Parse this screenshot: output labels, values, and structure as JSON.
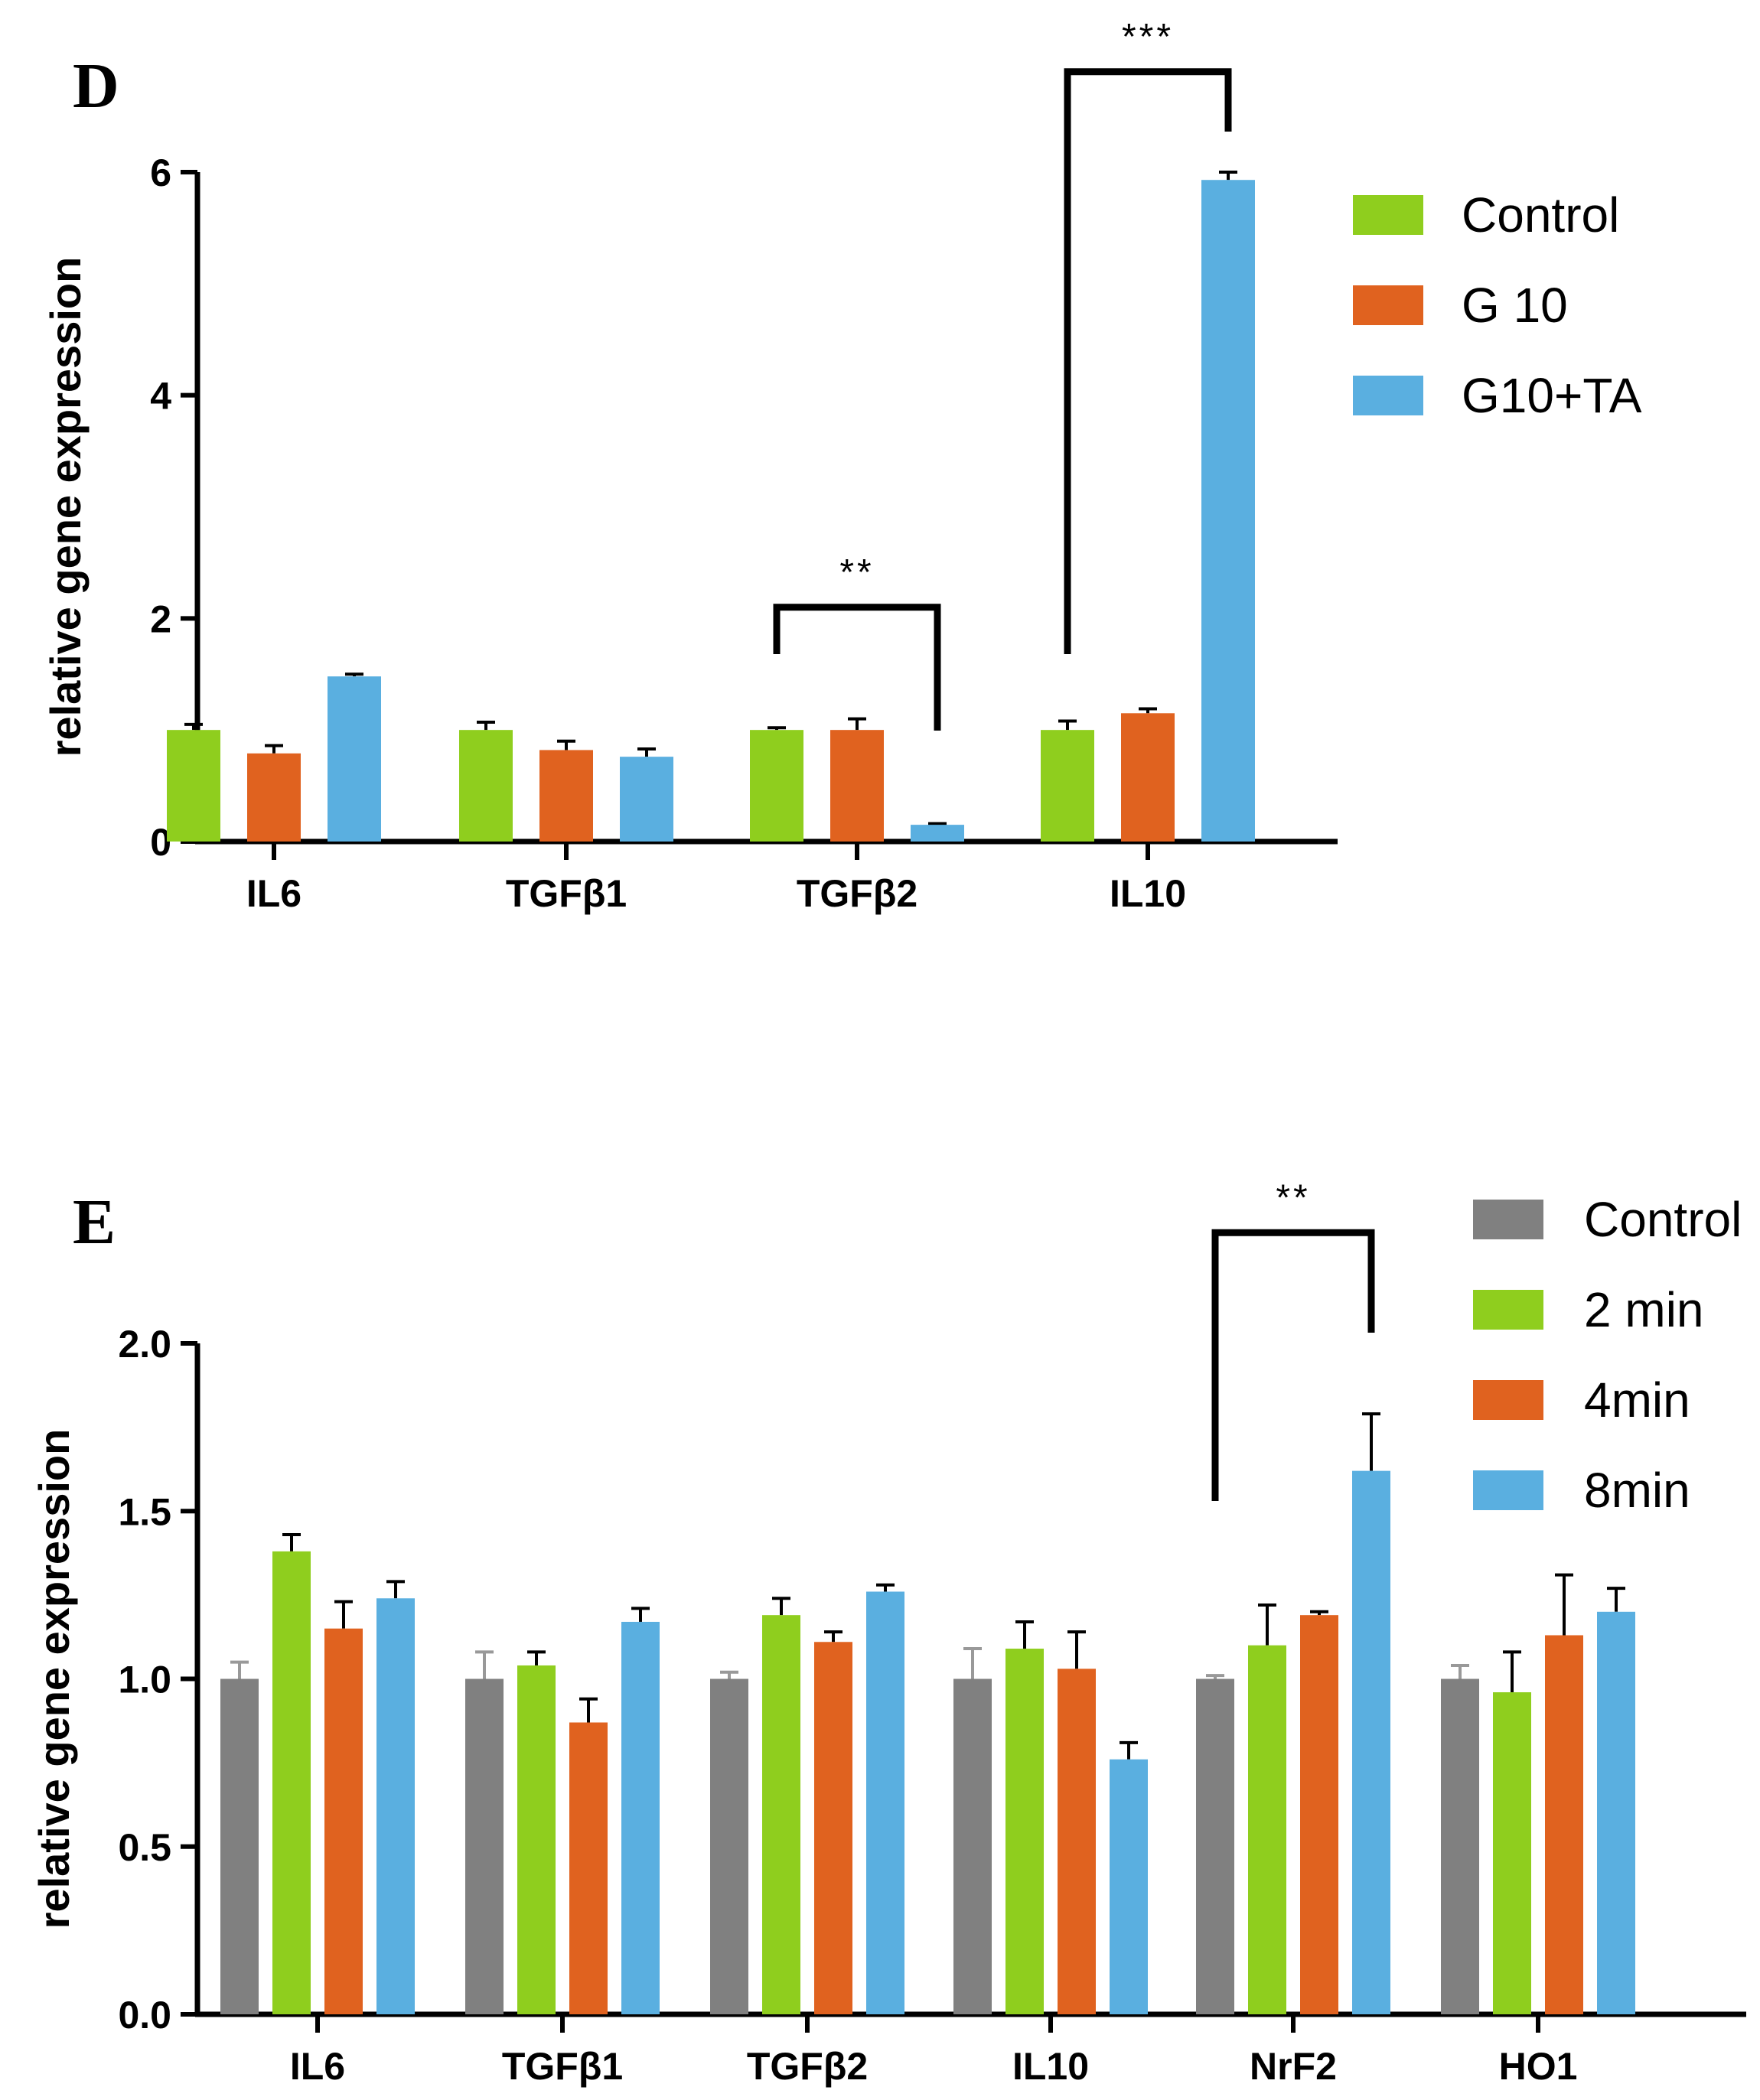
{
  "colors": {
    "gray": "#808080",
    "green": "#8fce1e",
    "orange": "#e0621f",
    "blue": "#5aafe0",
    "errbar": "#000000",
    "errbar_gray": "#999999"
  },
  "chart_data": [
    {
      "panel": "D",
      "type": "bar",
      "title": "",
      "xlabel": "",
      "ylabel": "relative  gene expression",
      "ylim": [
        0,
        6
      ],
      "yticks": [
        "0",
        "2",
        "4",
        "6"
      ],
      "legend_position": "top-right",
      "categories": [
        "IL6",
        "TGFβ1",
        "TGFβ2",
        "IL10"
      ],
      "series": [
        {
          "name": "Control",
          "color_key": "green",
          "values": [
            1.0,
            1.0,
            1.0,
            1.0
          ],
          "errors": [
            0.05,
            0.07,
            0.02,
            0.08
          ]
        },
        {
          "name": "G 10",
          "color_key": "orange",
          "values": [
            0.79,
            0.82,
            1.0,
            1.15
          ],
          "errors": [
            0.07,
            0.08,
            0.1,
            0.04
          ]
        },
        {
          "name": "G10+TA",
          "color_key": "blue",
          "values": [
            1.48,
            0.76,
            0.15,
            5.93
          ],
          "errors": [
            0.02,
            0.07,
            0.01,
            0.07
          ]
        }
      ],
      "annotations": [
        {
          "label": "**",
          "category": "TGFβ2",
          "from_series": 0,
          "to_series": 2,
          "level": 2.1
        },
        {
          "label": "***",
          "category": "IL10",
          "from_series": 0,
          "to_series": 2,
          "level": 6.9
        }
      ]
    },
    {
      "panel": "E",
      "type": "bar",
      "title": "",
      "xlabel": "",
      "ylabel": "relative  gene expression",
      "ylim": [
        0,
        2.0
      ],
      "yticks": [
        "0.0",
        "0.5",
        "1.0",
        "1.5",
        "2.0"
      ],
      "legend_position": "top-right",
      "categories": [
        "IL6",
        "TGFβ1",
        "TGFβ2",
        "IL10",
        "NrF2",
        "HO1"
      ],
      "series": [
        {
          "name": "Control",
          "color_key": "gray",
          "values": [
            1.0,
            1.0,
            1.0,
            1.0,
            1.0,
            1.0
          ],
          "errors": [
            0.05,
            0.08,
            0.02,
            0.09,
            0.01,
            0.04
          ]
        },
        {
          "name": "2 min",
          "color_key": "green",
          "values": [
            1.38,
            1.04,
            1.19,
            1.09,
            1.1,
            0.96
          ],
          "errors": [
            0.05,
            0.04,
            0.05,
            0.08,
            0.12,
            0.12
          ]
        },
        {
          "name": "4min",
          "color_key": "orange",
          "values": [
            1.15,
            0.87,
            1.11,
            1.03,
            1.19,
            1.13
          ],
          "errors": [
            0.08,
            0.07,
            0.03,
            0.11,
            0.01,
            0.18
          ]
        },
        {
          "name": "8min",
          "color_key": "blue",
          "values": [
            1.24,
            1.17,
            1.26,
            0.76,
            1.62,
            1.2
          ],
          "errors": [
            0.05,
            0.04,
            0.02,
            0.05,
            0.17,
            0.07
          ]
        }
      ],
      "annotations": [
        {
          "label": "**",
          "category": "NrF2",
          "from_series": 0,
          "to_series": 3,
          "level": 2.33
        }
      ]
    }
  ]
}
